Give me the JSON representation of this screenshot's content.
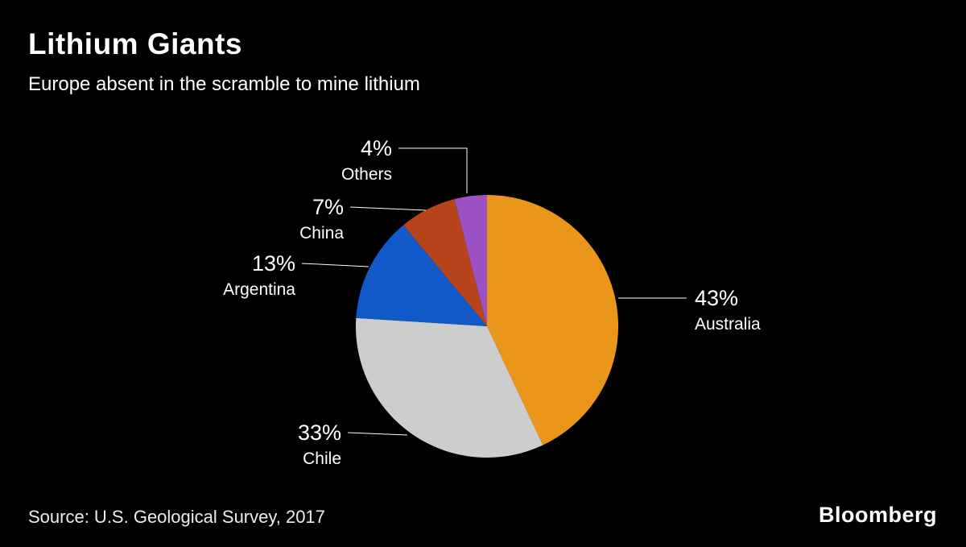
{
  "chart_data": {
    "type": "pie",
    "title": "Lithium Giants",
    "subtitle": "Europe absent in the scramble to mine lithium",
    "source": "Source: U.S. Geological Survey, 2017",
    "legend_position": "none",
    "background_color": "#000000",
    "label_line_color": "#ffffff",
    "slices": [
      {
        "label": "Australia",
        "value": 43,
        "color": "#E9961A"
      },
      {
        "label": "Chile",
        "value": 33,
        "color": "#CDCDCD"
      },
      {
        "label": "Argentina",
        "value": 13,
        "color": "#1159C9"
      },
      {
        "label": "China",
        "value": 7,
        "color": "#B8441C"
      },
      {
        "label": "Others",
        "value": 4,
        "color": "#9C52C5"
      }
    ]
  },
  "footer": {
    "brand": "Bloomberg"
  }
}
